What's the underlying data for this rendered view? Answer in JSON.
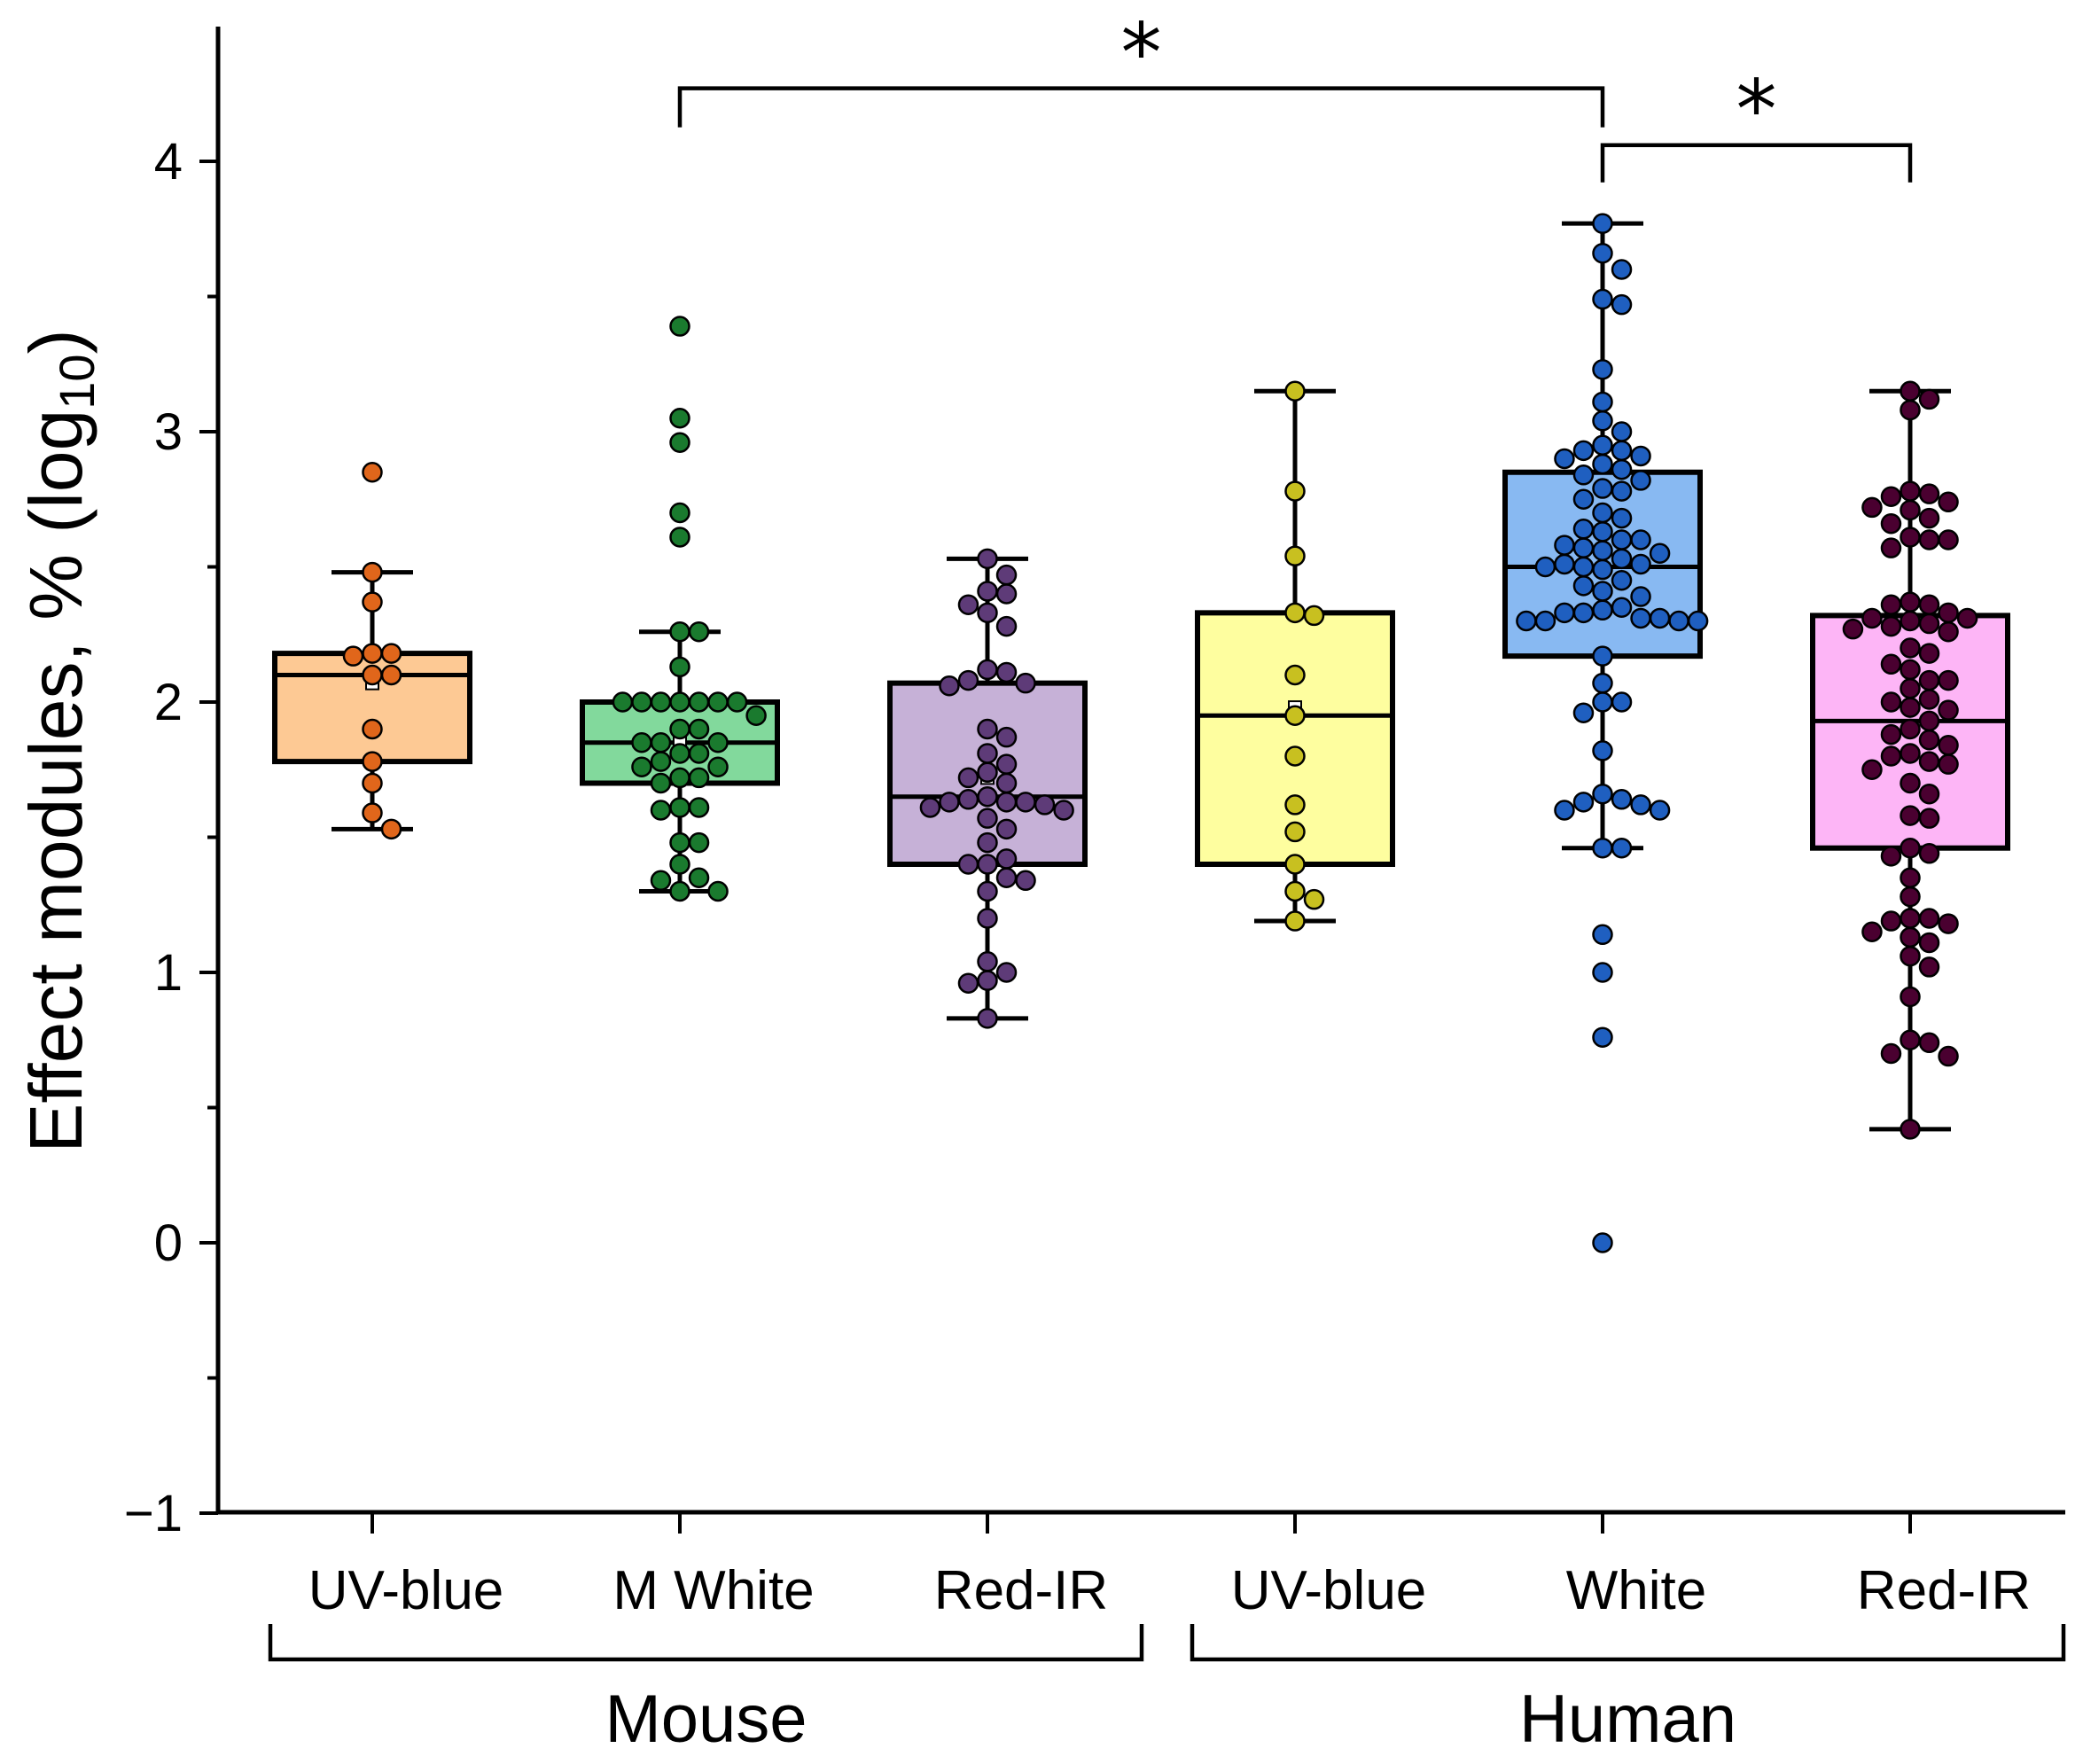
{
  "chart_data": {
    "type": "box",
    "ylabel": "Effect modules, % (log",
    "ylabel_subscript": "10",
    "ylabel_close": ")",
    "ylim": [
      -1,
      4.5
    ],
    "yticks": [
      -1,
      0,
      1,
      2,
      3,
      4
    ],
    "ytick_labels": [
      "−1",
      "0",
      "1",
      "2",
      "3",
      "4"
    ],
    "groups": [
      {
        "name": "Mouse",
        "categories": [
          0,
          1,
          2
        ]
      },
      {
        "name": "Human",
        "categories": [
          3,
          4,
          5
        ]
      }
    ],
    "series": [
      {
        "name": "UV-blue",
        "group": "Mouse",
        "fill": "#fdc994",
        "point_color": "#e0661b",
        "whisker_low": 1.53,
        "q1": 1.78,
        "median": 2.1,
        "q3": 2.18,
        "whisker_high": 2.48,
        "mean": 2.07,
        "points": [
          2.85,
          2.48,
          2.37,
          2.18,
          2.18,
          2.17,
          2.1,
          2.1,
          1.9,
          1.78,
          1.7,
          1.59,
          1.53
        ]
      },
      {
        "name": "M White",
        "group": "Mouse",
        "fill": "#82d99c",
        "point_color": "#1a7a2e",
        "whisker_low": 1.3,
        "q1": 1.7,
        "median": 1.85,
        "q3": 2.0,
        "whisker_high": 2.26,
        "mean": 1.86,
        "points": [
          3.39,
          3.05,
          2.96,
          2.7,
          2.61,
          2.26,
          2.26,
          2.13,
          2.0,
          2.0,
          2.0,
          2.0,
          2.0,
          2.0,
          2.0,
          1.95,
          1.9,
          1.9,
          1.85,
          1.85,
          1.85,
          1.81,
          1.81,
          1.78,
          1.76,
          1.76,
          1.72,
          1.72,
          1.7,
          1.61,
          1.61,
          1.6,
          1.48,
          1.48,
          1.4,
          1.35,
          1.34,
          1.3,
          1.3
        ]
      },
      {
        "name": "Red-IR",
        "group": "Mouse",
        "fill": "#c6b1d7",
        "point_color": "#5e3b78",
        "whisker_low": 0.83,
        "q1": 1.4,
        "median": 1.65,
        "q3": 2.07,
        "whisker_high": 2.53,
        "mean": 1.72,
        "points": [
          2.53,
          2.47,
          2.41,
          2.4,
          2.36,
          2.33,
          2.28,
          2.12,
          2.11,
          2.08,
          2.07,
          2.06,
          1.9,
          1.87,
          1.81,
          1.77,
          1.74,
          1.72,
          1.7,
          1.65,
          1.64,
          1.63,
          1.63,
          1.63,
          1.62,
          1.61,
          1.6,
          1.57,
          1.53,
          1.48,
          1.42,
          1.4,
          1.4,
          1.35,
          1.34,
          1.3,
          1.2,
          1.04,
          1.0,
          0.97,
          0.96,
          0.83
        ]
      },
      {
        "name": "UV-blue",
        "group": "Human",
        "fill": "#fefe9f",
        "point_color": "#c8c020",
        "whisker_low": 1.19,
        "q1": 1.4,
        "median": 1.95,
        "q3": 2.33,
        "whisker_high": 3.15,
        "mean": 1.98,
        "points": [
          3.15,
          2.78,
          2.54,
          2.33,
          2.32,
          2.1,
          1.95,
          1.8,
          1.62,
          1.52,
          1.4,
          1.3,
          1.27,
          1.19
        ]
      },
      {
        "name": "White",
        "group": "Human",
        "fill": "#88b9f2",
        "point_color": "#1f5fc0",
        "whisker_low": 1.46,
        "q1": 2.17,
        "median": 2.5,
        "q3": 2.85,
        "whisker_high": 3.77,
        "mean": 2.49,
        "points": [
          3.77,
          3.66,
          3.6,
          3.49,
          3.47,
          3.23,
          3.11,
          3.04,
          3.0,
          2.95,
          2.93,
          2.93,
          2.91,
          2.9,
          2.88,
          2.86,
          2.84,
          2.82,
          2.79,
          2.78,
          2.75,
          2.7,
          2.68,
          2.64,
          2.63,
          2.6,
          2.6,
          2.58,
          2.57,
          2.56,
          2.55,
          2.53,
          2.51,
          2.51,
          2.5,
          2.5,
          2.49,
          2.45,
          2.43,
          2.41,
          2.39,
          2.35,
          2.34,
          2.33,
          2.33,
          2.31,
          2.31,
          2.3,
          2.3,
          2.3,
          2.3,
          2.17,
          2.07,
          2.0,
          2.0,
          1.96,
          1.82,
          1.66,
          1.64,
          1.63,
          1.62,
          1.6,
          1.6,
          1.46,
          1.46,
          1.14,
          1.0,
          0.76,
          0.0
        ]
      },
      {
        "name": "Red-IR",
        "group": "Human",
        "fill": "#fdb5f6",
        "point_color": "#4a0030",
        "whisker_low": 0.42,
        "q1": 1.46,
        "median": 1.93,
        "q3": 2.32,
        "whisker_high": 3.15,
        "mean": 1.9,
        "points": [
          3.15,
          3.12,
          3.08,
          2.78,
          2.77,
          2.76,
          2.74,
          2.72,
          2.71,
          2.68,
          2.66,
          2.61,
          2.6,
          2.6,
          2.57,
          2.37,
          2.36,
          2.36,
          2.33,
          2.31,
          2.31,
          2.3,
          2.29,
          2.28,
          2.27,
          2.26,
          2.2,
          2.18,
          2.14,
          2.12,
          2.08,
          2.08,
          2.05,
          2.01,
          2.0,
          1.98,
          1.97,
          1.93,
          1.9,
          1.88,
          1.86,
          1.84,
          1.81,
          1.8,
          1.78,
          1.77,
          1.75,
          1.7,
          1.66,
          1.58,
          1.57,
          1.46,
          1.44,
          1.43,
          1.35,
          1.28,
          1.2,
          1.2,
          1.19,
          1.18,
          1.15,
          1.13,
          1.11,
          1.06,
          1.02,
          0.91,
          0.75,
          0.74,
          0.7,
          0.69,
          0.42
        ]
      }
    ],
    "significance": [
      {
        "from": 1,
        "to": 4,
        "label": "*",
        "level": 4.27
      },
      {
        "from": 4,
        "to": 5,
        "label": "*",
        "level": 4.06
      }
    ]
  }
}
